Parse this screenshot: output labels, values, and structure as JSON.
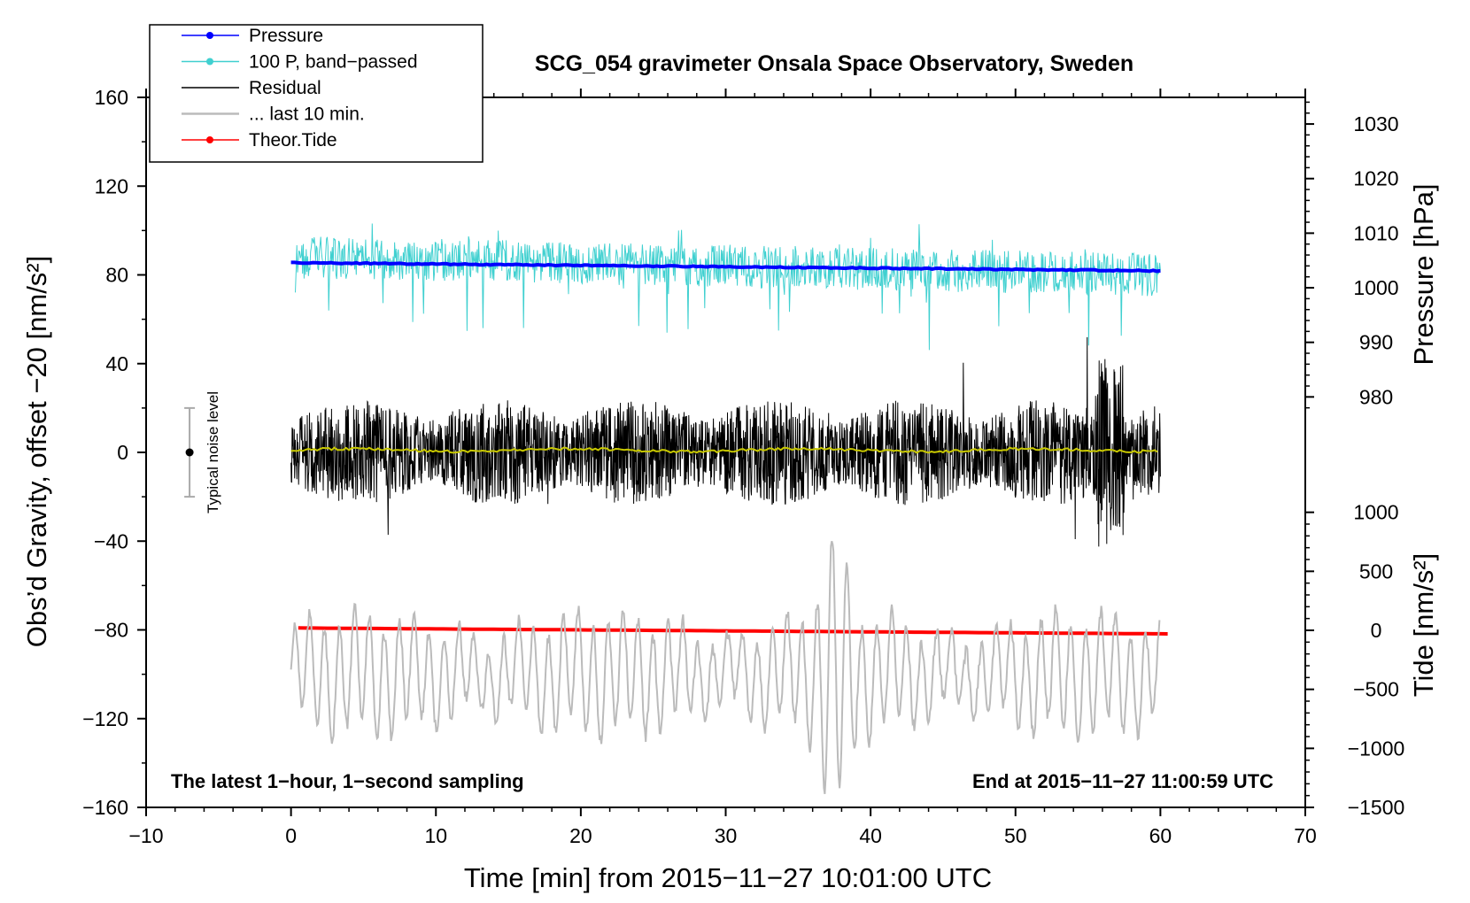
{
  "chart_data": {
    "type": "line",
    "title": "SCG_054 gravimeter Onsala Space Observatory, Sweden",
    "xlabel": "Time [min] from 2015−11−27 10:01:00 UTC",
    "ylabel_left": "Obs’d Gravity, offset −20 [nm/s²]",
    "ylabel_right_top": "Pressure [hPa]",
    "ylabel_right_bottom": "Tide [nm/s²]",
    "xlim": [
      -10,
      70
    ],
    "ylim_left": [
      -160,
      160
    ],
    "x_ticks": [
      -10,
      0,
      10,
      20,
      30,
      40,
      50,
      60,
      70
    ],
    "x_tick_labels": [
      "−10",
      "0",
      "10",
      "20",
      "30",
      "40",
      "50",
      "60",
      "70"
    ],
    "y_ticks": [
      160,
      120,
      80,
      40,
      0,
      -40,
      -80,
      -120,
      -160
    ],
    "y_tick_labels": [
      "160",
      "120",
      "80",
      "40",
      "0",
      "−40",
      "−80",
      "−120",
      "−160"
    ],
    "pressure_axis": {
      "ticks": [
        1030,
        1020,
        1010,
        1000,
        990,
        980
      ],
      "tick_labels": [
        "1030",
        "1020",
        "1010",
        "1000",
        "990",
        "980"
      ],
      "left_equiv": [
        [
          1030,
          148
        ],
        [
          980,
          25
        ]
      ]
    },
    "tide_axis": {
      "ticks": [
        1000,
        500,
        0,
        -500,
        -1000,
        -1500
      ],
      "tick_labels": [
        "1000",
        "500",
        "0",
        "−500",
        "−1000",
        "−1500"
      ],
      "left_equiv": [
        [
          1000,
          -27
        ],
        [
          -1500,
          -160
        ]
      ]
    },
    "series": [
      {
        "name": "Pressure",
        "color": "#0000ff",
        "unit": "hPa",
        "start": 1004.6,
        "end": 1003.1,
        "x_range": [
          0,
          60
        ]
      },
      {
        "name": "100 P, band−passed",
        "color": "#40d0d0",
        "unit": "nm/s²",
        "center": 88,
        "spread": 12,
        "min": 43,
        "max": 110
      },
      {
        "name": "Residual",
        "color": "#000000",
        "unit": "nm/s²",
        "center": 0,
        "spread": 20,
        "min": -58,
        "max": 58
      },
      {
        "name": "Residual mean",
        "color": "#c8c800",
        "unit": "nm/s²",
        "center": 1
      },
      {
        "name": "... last 10 min.",
        "color": "#bbbbbb",
        "unit": "nm/s²",
        "center": -100,
        "amplitude": 25,
        "min": -158,
        "max": -40
      },
      {
        "name": "Theor.Tide",
        "color": "#ff0000",
        "unit": "nm/s² (tide)",
        "start": 20,
        "end": -30,
        "x_range": [
          0.5,
          60.5
        ]
      }
    ],
    "legend": [
      {
        "label": "Pressure",
        "color": "#0000ff",
        "marker": true
      },
      {
        "label": "100 P, band−passed",
        "color": "#40d0d0",
        "marker": true
      },
      {
        "label": "Residual",
        "color": "#000000",
        "marker": false
      },
      {
        "label": "... last 10 min.",
        "color": "#bbbbbb",
        "marker": false
      },
      {
        "label": "Theor.Tide",
        "color": "#ff0000",
        "marker": true
      }
    ],
    "legend_placement": "top-left",
    "noise_level": {
      "label": "Typical noise level",
      "x": -7,
      "center": 0,
      "half_range": 20
    },
    "annotations": {
      "bottom_left": "The latest 1−hour, 1−second sampling",
      "bottom_right": "End at 2015−11−27 11:00:59 UTC"
    }
  }
}
